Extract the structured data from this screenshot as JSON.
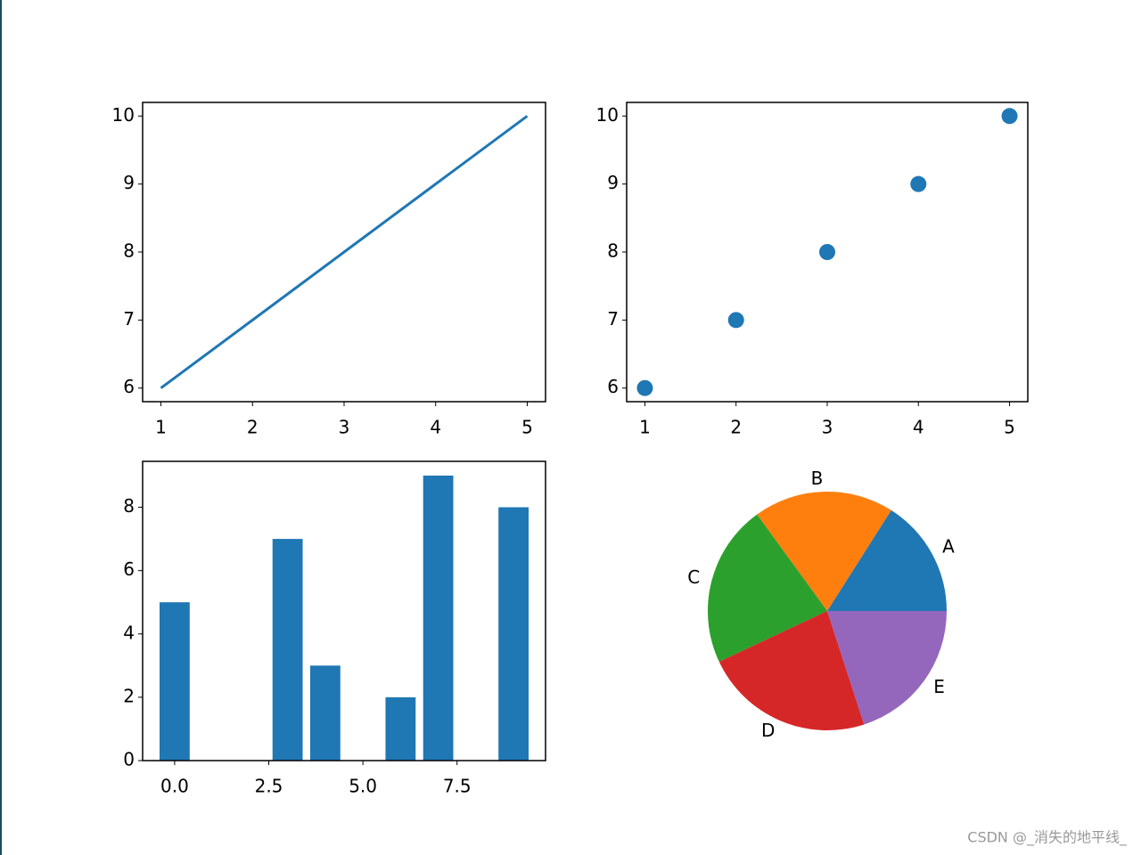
{
  "chart_data": [
    {
      "type": "line",
      "x": [
        1,
        2,
        3,
        4,
        5
      ],
      "values": [
        6,
        7,
        8,
        9,
        10
      ],
      "color": "#1f77b4",
      "xlim": [
        0.8,
        5.2
      ],
      "ylim": [
        5.8,
        10.2
      ],
      "xticks": [
        1,
        2,
        3,
        4,
        5
      ],
      "yticks": [
        6,
        7,
        8,
        9,
        10
      ]
    },
    {
      "type": "scatter",
      "x": [
        1,
        2,
        3,
        4,
        5
      ],
      "values": [
        6,
        7,
        8,
        9,
        10
      ],
      "color": "#1f77b4",
      "xlim": [
        0.8,
        5.2
      ],
      "ylim": [
        5.8,
        10.2
      ],
      "xticks": [
        1,
        2,
        3,
        4,
        5
      ],
      "yticks": [
        6,
        7,
        8,
        9,
        10
      ]
    },
    {
      "type": "bar",
      "x": [
        0,
        3,
        4,
        6,
        7,
        9
      ],
      "values": [
        5,
        7,
        3,
        2,
        9,
        8
      ],
      "color": "#1f77b4",
      "xlim": [
        -0.85,
        9.85
      ],
      "ylim": [
        0,
        9.45
      ],
      "xticks": [
        {
          "value": 0,
          "label": "0.0"
        },
        {
          "value": 2.5,
          "label": "2.5"
        },
        {
          "value": 5,
          "label": "5.0"
        },
        {
          "value": 7.5,
          "label": "7.5"
        }
      ],
      "yticks": [
        0,
        2,
        4,
        6,
        8
      ]
    },
    {
      "type": "pie",
      "labels": [
        "A",
        "B",
        "C",
        "D",
        "E"
      ],
      "values": [
        16,
        19,
        22,
        23,
        20
      ],
      "colors": [
        "#1f77b4",
        "#ff7f0e",
        "#2ca02c",
        "#d62728",
        "#9467bd"
      ]
    }
  ],
  "watermark": "CSDN @_消失的地平线_"
}
